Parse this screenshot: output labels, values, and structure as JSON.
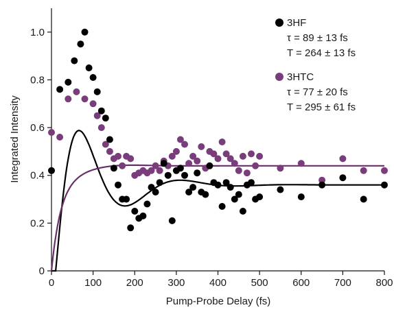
{
  "chart_data": {
    "type": "scatter",
    "xlabel": "Pump-Probe Delay (fs)",
    "ylabel": "Integrated Intensity",
    "xlim": [
      0,
      800
    ],
    "ylim": [
      0,
      1.1
    ],
    "xticks": [
      "0",
      "100",
      "200",
      "300",
      "400",
      "500",
      "600",
      "700",
      "800"
    ],
    "yticks": [
      "0",
      "0.2",
      "0.4",
      "0.6",
      "0.8",
      "1.0"
    ],
    "grid": false,
    "legend_position": "top-right",
    "series": [
      {
        "name": "3HF",
        "color": "#000000",
        "marker_color": "#000000",
        "annotation_lines": [
          "τ = 89 ± 13 fs",
          "T = 264 ± 13 fs"
        ],
        "fit": {
          "t0": 10,
          "rise": 30,
          "tau": 89,
          "period": 264,
          "offset": 0.36,
          "amplitude": 0.99,
          "phase": 0.15
        },
        "points": [
          [
            0,
            0.42
          ],
          [
            20,
            0.76
          ],
          [
            40,
            0.79
          ],
          [
            55,
            0.88
          ],
          [
            70,
            0.95
          ],
          [
            80,
            1.0
          ],
          [
            90,
            0.85
          ],
          [
            100,
            0.81
          ],
          [
            110,
            0.75
          ],
          [
            120,
            0.67
          ],
          [
            130,
            0.64
          ],
          [
            140,
            0.55
          ],
          [
            150,
            0.43
          ],
          [
            160,
            0.36
          ],
          [
            170,
            0.3
          ],
          [
            180,
            0.3
          ],
          [
            190,
            0.18
          ],
          [
            200,
            0.25
          ],
          [
            210,
            0.22
          ],
          [
            220,
            0.23
          ],
          [
            230,
            0.28
          ],
          [
            240,
            0.35
          ],
          [
            250,
            0.33
          ],
          [
            260,
            0.37
          ],
          [
            270,
            0.45
          ],
          [
            280,
            0.4
          ],
          [
            290,
            0.21
          ],
          [
            300,
            0.42
          ],
          [
            310,
            0.43
          ],
          [
            320,
            0.4
          ],
          [
            330,
            0.33
          ],
          [
            340,
            0.35
          ],
          [
            350,
            0.41
          ],
          [
            360,
            0.33
          ],
          [
            370,
            0.32
          ],
          [
            380,
            0.44
          ],
          [
            390,
            0.37
          ],
          [
            400,
            0.36
          ],
          [
            410,
            0.27
          ],
          [
            420,
            0.37
          ],
          [
            430,
            0.35
          ],
          [
            440,
            0.3
          ],
          [
            450,
            0.32
          ],
          [
            460,
            0.25
          ],
          [
            470,
            0.36
          ],
          [
            480,
            0.37
          ],
          [
            490,
            0.3
          ],
          [
            500,
            0.31
          ],
          [
            550,
            0.34
          ],
          [
            600,
            0.31
          ],
          [
            650,
            0.36
          ],
          [
            700,
            0.39
          ],
          [
            750,
            0.3
          ],
          [
            800,
            0.36
          ]
        ]
      },
      {
        "name": "3HTC",
        "color": "#6a2f6b",
        "marker_color": "#7a3d7c",
        "annotation_lines": [
          "τ = 77 ± 20 fs",
          "T = 295 ± 61 fs"
        ],
        "fit": {
          "t0": 0,
          "rise": 25,
          "tau": 77,
          "period": 295,
          "offset": 0.44,
          "amplitude": 0.4,
          "phase": 0.0
        },
        "points": [
          [
            0,
            0.58
          ],
          [
            20,
            0.56
          ],
          [
            40,
            0.72
          ],
          [
            60,
            0.75
          ],
          [
            80,
            0.72
          ],
          [
            100,
            0.7
          ],
          [
            110,
            0.65
          ],
          [
            120,
            0.6
          ],
          [
            130,
            0.53
          ],
          [
            140,
            0.5
          ],
          [
            150,
            0.47
          ],
          [
            160,
            0.48
          ],
          [
            170,
            0.44
          ],
          [
            180,
            0.48
          ],
          [
            190,
            0.47
          ],
          [
            200,
            0.4
          ],
          [
            210,
            0.41
          ],
          [
            220,
            0.42
          ],
          [
            230,
            0.41
          ],
          [
            240,
            0.42
          ],
          [
            250,
            0.44
          ],
          [
            260,
            0.42
          ],
          [
            270,
            0.46
          ],
          [
            280,
            0.44
          ],
          [
            290,
            0.48
          ],
          [
            300,
            0.5
          ],
          [
            310,
            0.55
          ],
          [
            320,
            0.53
          ],
          [
            330,
            0.45
          ],
          [
            340,
            0.48
          ],
          [
            350,
            0.46
          ],
          [
            360,
            0.52
          ],
          [
            370,
            0.43
          ],
          [
            380,
            0.5
          ],
          [
            390,
            0.49
          ],
          [
            400,
            0.47
          ],
          [
            410,
            0.54
          ],
          [
            420,
            0.49
          ],
          [
            430,
            0.47
          ],
          [
            440,
            0.45
          ],
          [
            450,
            0.42
          ],
          [
            460,
            0.48
          ],
          [
            470,
            0.41
          ],
          [
            480,
            0.49
          ],
          [
            490,
            0.44
          ],
          [
            500,
            0.48
          ],
          [
            550,
            0.43
          ],
          [
            600,
            0.45
          ],
          [
            650,
            0.38
          ],
          [
            700,
            0.47
          ],
          [
            750,
            0.42
          ],
          [
            800,
            0.42
          ]
        ]
      }
    ]
  }
}
